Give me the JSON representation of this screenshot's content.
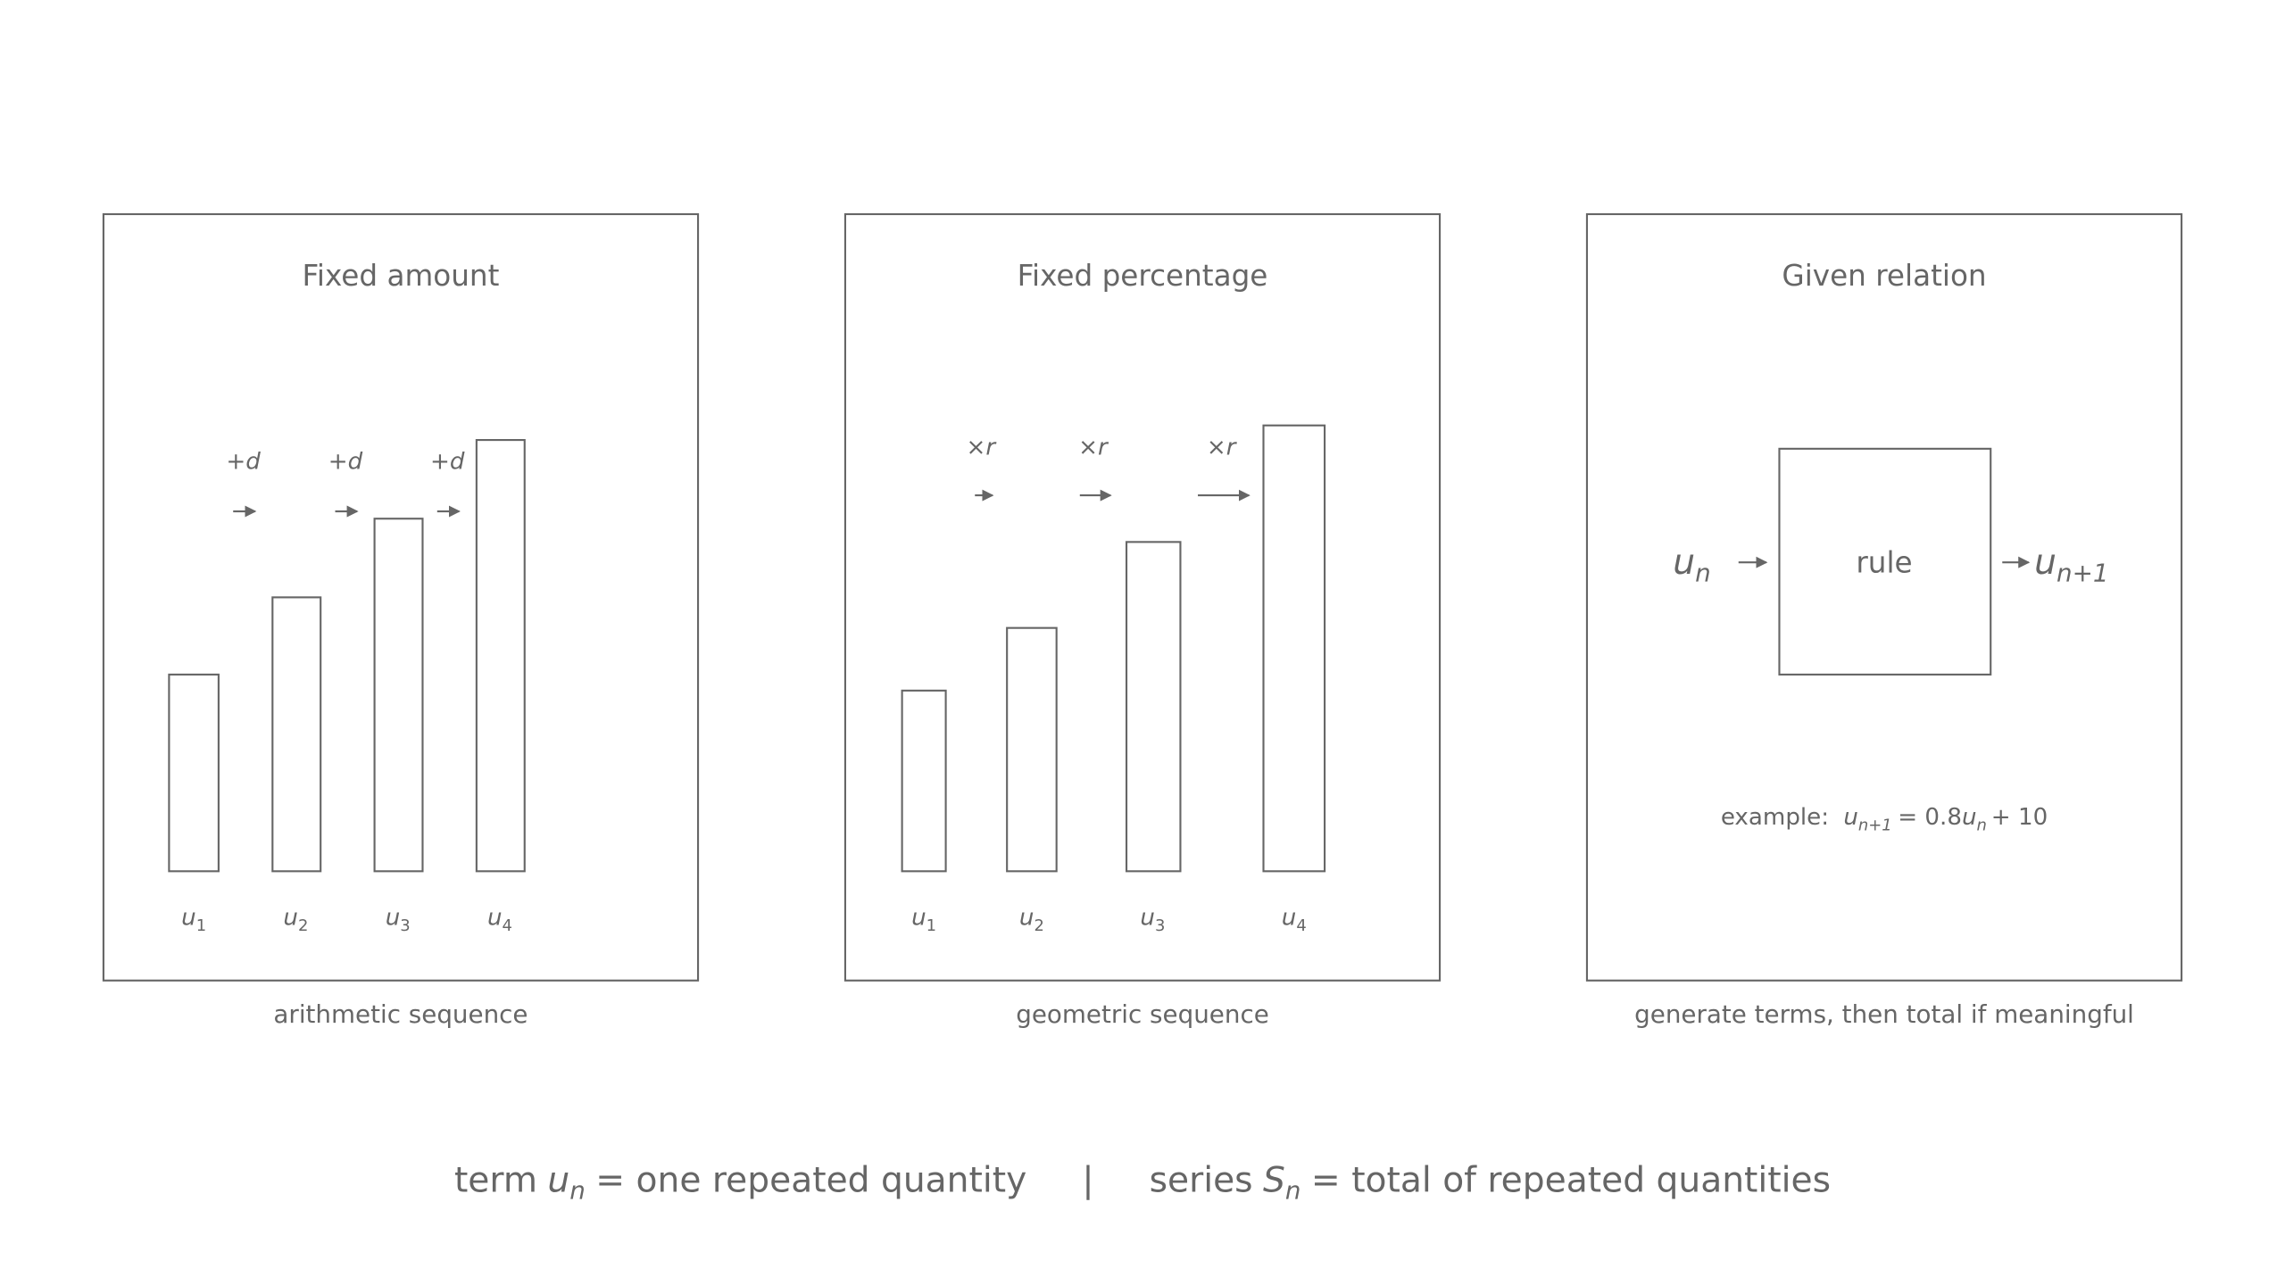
{
  "panels": [
    {
      "title": "Fixed amount",
      "caption": "arithmetic sequence",
      "step_labels": [
        "+d",
        "+d",
        "+d"
      ],
      "terms": [
        {
          "symbol": "u",
          "subscript": "1"
        },
        {
          "symbol": "u",
          "subscript": "2"
        },
        {
          "symbol": "u",
          "subscript": "3"
        },
        {
          "symbol": "u",
          "subscript": "4"
        }
      ]
    },
    {
      "title": "Fixed percentage",
      "caption": "geometric sequence",
      "step_labels": [
        "×r",
        "×r",
        "×r"
      ],
      "terms": [
        {
          "symbol": "u",
          "subscript": "1"
        },
        {
          "symbol": "u",
          "subscript": "2"
        },
        {
          "symbol": "u",
          "subscript": "3"
        },
        {
          "symbol": "u",
          "subscript": "4"
        }
      ]
    },
    {
      "title": "Given relation",
      "caption": "generate terms, then total if meaningful",
      "input": {
        "symbol": "u",
        "subscript": "n"
      },
      "box": "rule",
      "output": {
        "symbol": "u",
        "subscript": "n+1"
      },
      "example": {
        "prefix": "example:",
        "lhs": {
          "symbol": "u",
          "subscript": "n+1"
        },
        "equals": "= 0.8",
        "rhs": {
          "symbol": "u",
          "subscript": "n"
        },
        "tail": "+ 10"
      }
    }
  ],
  "footer": {
    "term_word": "term",
    "term_symbol": {
      "symbol": "u",
      "subscript": "n"
    },
    "term_text": "= one repeated quantity",
    "separator": "|",
    "series_word": "series",
    "series_symbol": {
      "symbol": "S",
      "subscript": "n"
    },
    "series_text": "= total of repeated quantities"
  }
}
